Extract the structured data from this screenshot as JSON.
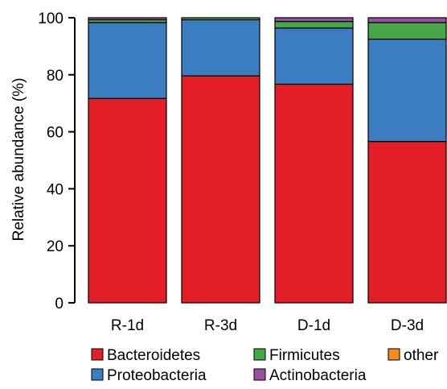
{
  "chart_data": {
    "type": "bar",
    "stacked": true,
    "ylabel": "Relative abundance (%)",
    "ylim": [
      0,
      100
    ],
    "yticks": [
      0,
      20,
      40,
      60,
      80,
      100
    ],
    "categories": [
      "R-1d",
      "R-3d",
      "D-1d",
      "D-3d"
    ],
    "series": [
      {
        "name": "Bacteroidetes",
        "color": "#e41e26",
        "values": [
          71.7,
          79.6,
          76.7,
          56.6
        ]
      },
      {
        "name": "Proteobacteria",
        "color": "#3a7dc0",
        "values": [
          26.6,
          19.7,
          19.7,
          35.9
        ]
      },
      {
        "name": "Firmicutes",
        "color": "#45a747",
        "values": [
          1.0,
          0.7,
          2.3,
          5.8
        ]
      },
      {
        "name": "other",
        "color": "#f58d1d",
        "values": [
          0.0,
          0.0,
          0.0,
          0.0
        ]
      },
      {
        "name": "Actinobacteria",
        "color": "#9a50a0",
        "values": [
          0.7,
          0.0,
          1.3,
          1.7
        ]
      }
    ],
    "grid": false,
    "legend": "bottom"
  }
}
